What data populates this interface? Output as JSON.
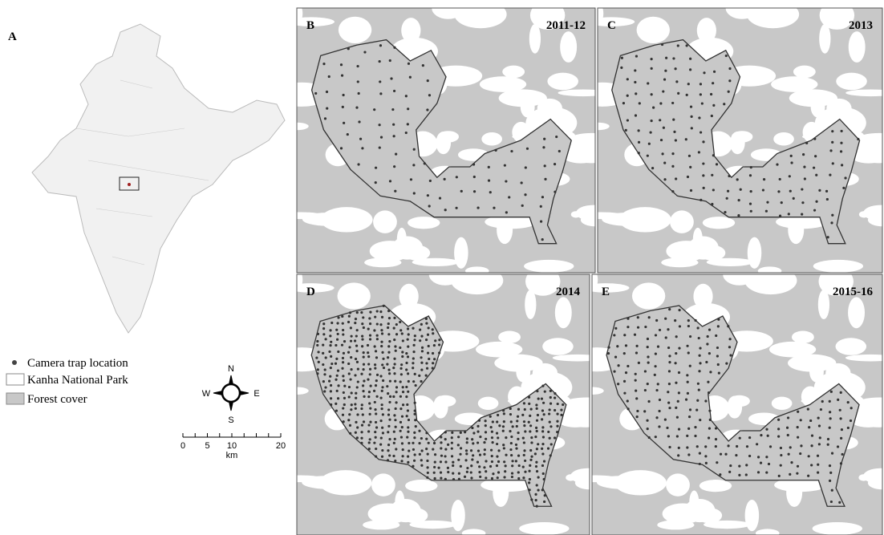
{
  "panels": [
    {
      "letter": "A"
    },
    {
      "letter": "B",
      "year": "2011-12"
    },
    {
      "letter": "C",
      "year": "2013"
    },
    {
      "letter": "D",
      "year": "2014"
    },
    {
      "letter": "E",
      "year": "2015-16"
    }
  ],
  "legend": [
    "Camera trap location",
    "Kanha National Park",
    "Forest cover"
  ],
  "compass": {
    "north": "N",
    "east": "E",
    "south": "S",
    "west": "W"
  },
  "scale_bar": {
    "ticks": [
      0,
      5,
      10,
      20
    ],
    "unit": "km"
  }
}
